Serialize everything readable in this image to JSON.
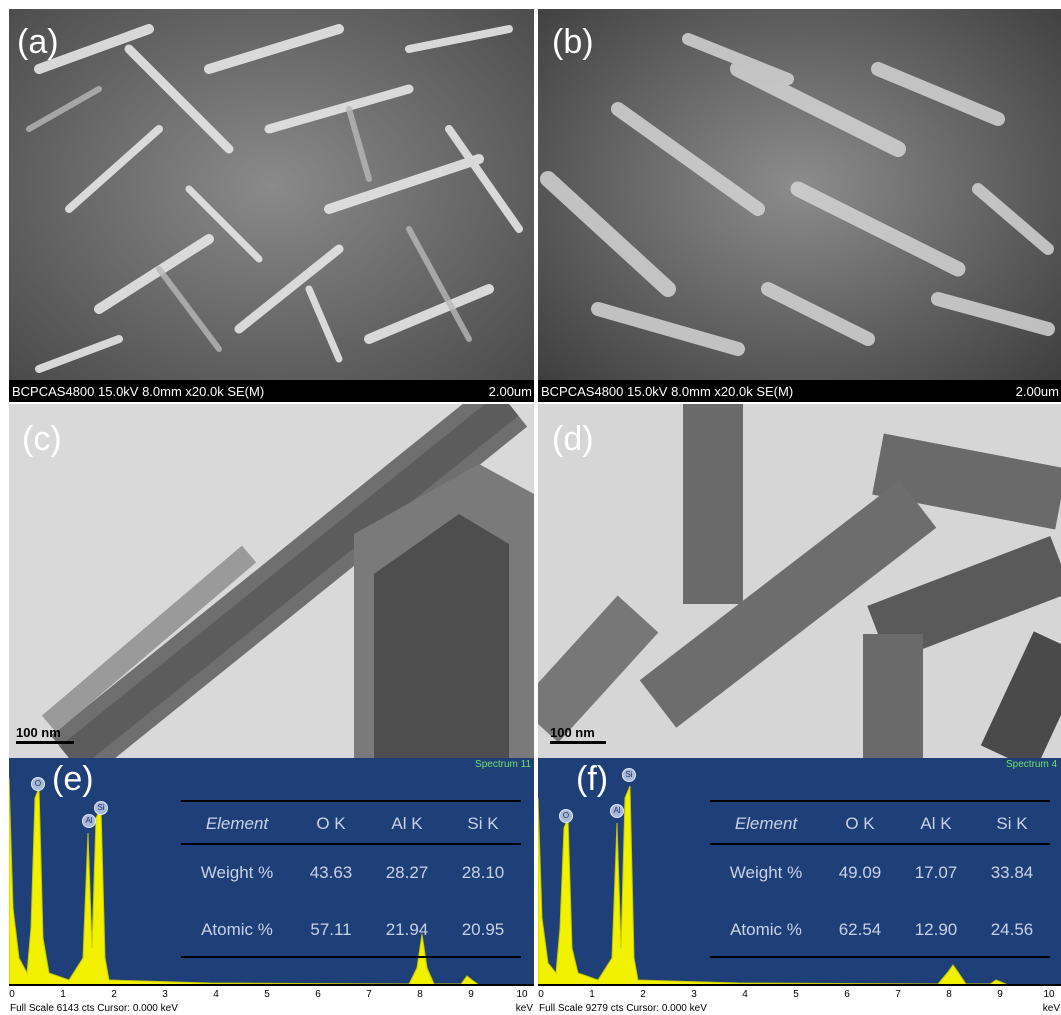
{
  "panels": {
    "a": {
      "label": "(a)",
      "info": "BCPCAS4800 15.0kV 8.0mm x20.0k SE(M)",
      "scale": "2.00um"
    },
    "b": {
      "label": "(b)",
      "info": "BCPCAS4800 15.0kV 8.0mm x20.0k SE(M)",
      "scale": "2.00um"
    },
    "c": {
      "label": "(c)",
      "scale": "100 nm"
    },
    "d": {
      "label": "(d)",
      "scale": "100 nm"
    },
    "e": {
      "label": "(e)",
      "spectrum": "Spectrum 11",
      "peaks": [
        "O",
        "Al",
        "Si"
      ],
      "table": {
        "headers": [
          "Element",
          "O K",
          "Al K",
          "Si K"
        ],
        "rows": [
          {
            "label": "Weight %",
            "values": [
              "43.63",
              "28.27",
              "28.10"
            ]
          },
          {
            "label": "Atomic %",
            "values": [
              "57.11",
              "21.94",
              "20.95"
            ]
          }
        ]
      },
      "axis_ticks": [
        "0",
        "1",
        "2",
        "3",
        "4",
        "5",
        "6",
        "7",
        "8",
        "9",
        "10"
      ],
      "footer": "Full Scale 6143 cts  Cursor: 0.000 keV",
      "unit": "keV"
    },
    "f": {
      "label": "(f)",
      "spectrum": "Spectrum 4",
      "peaks": [
        "O",
        "Al",
        "Si"
      ],
      "table": {
        "headers": [
          "Element",
          "O K",
          "Al K",
          "Si K"
        ],
        "rows": [
          {
            "label": "Weight %",
            "values": [
              "49.09",
              "17.07",
              "33.84"
            ]
          },
          {
            "label": "Atomic %",
            "values": [
              "62.54",
              "12.90",
              "24.56"
            ]
          }
        ]
      },
      "axis_ticks": [
        "0",
        "1",
        "2",
        "3",
        "4",
        "5",
        "6",
        "7",
        "8",
        "9",
        "10"
      ],
      "footer": "Full Scale 9279 cts  Cursor: 0.000 keV",
      "unit": "keV"
    }
  }
}
